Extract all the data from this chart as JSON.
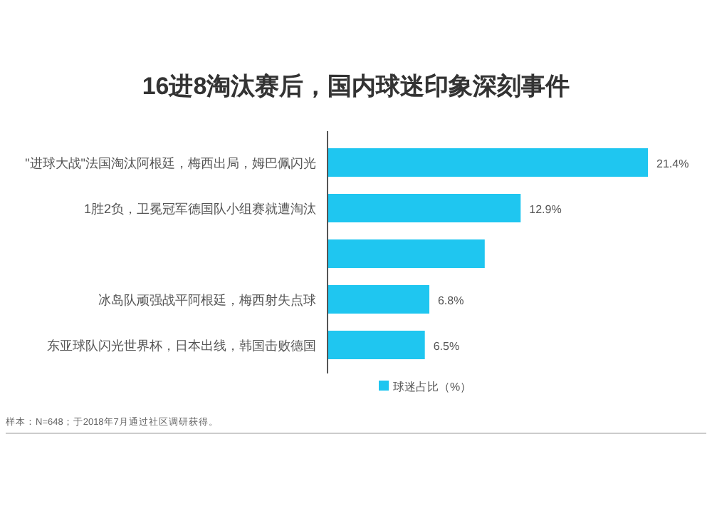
{
  "chart_data": {
    "type": "bar",
    "orientation": "horizontal",
    "title": "16进8淘汰赛后，国内球迷印象深刻事件",
    "categories": [
      "\"进球大战\"法国淘汰阿根廷，梅西出局，姆巴佩闪光",
      "1胜2负，卫冕冠军德国队小组赛就遭淘汰",
      null,
      "冰岛队顽强战平阿根廷，梅西射失点球",
      "东亚球队闪光世界杯，日本出线，韩国击败德国"
    ],
    "series": [
      {
        "name": "球迷占比（%）",
        "color": "#1fc6f0",
        "values": [
          21.4,
          12.9,
          10.5,
          6.8,
          6.5
        ],
        "value_labels": [
          "21.4%",
          "12.9%",
          null,
          "6.8%",
          "6.5%"
        ]
      }
    ],
    "legend": "bottom",
    "annotations": [
      "样本：N=648；于2018年7月通过社区调研获得。"
    ]
  }
}
